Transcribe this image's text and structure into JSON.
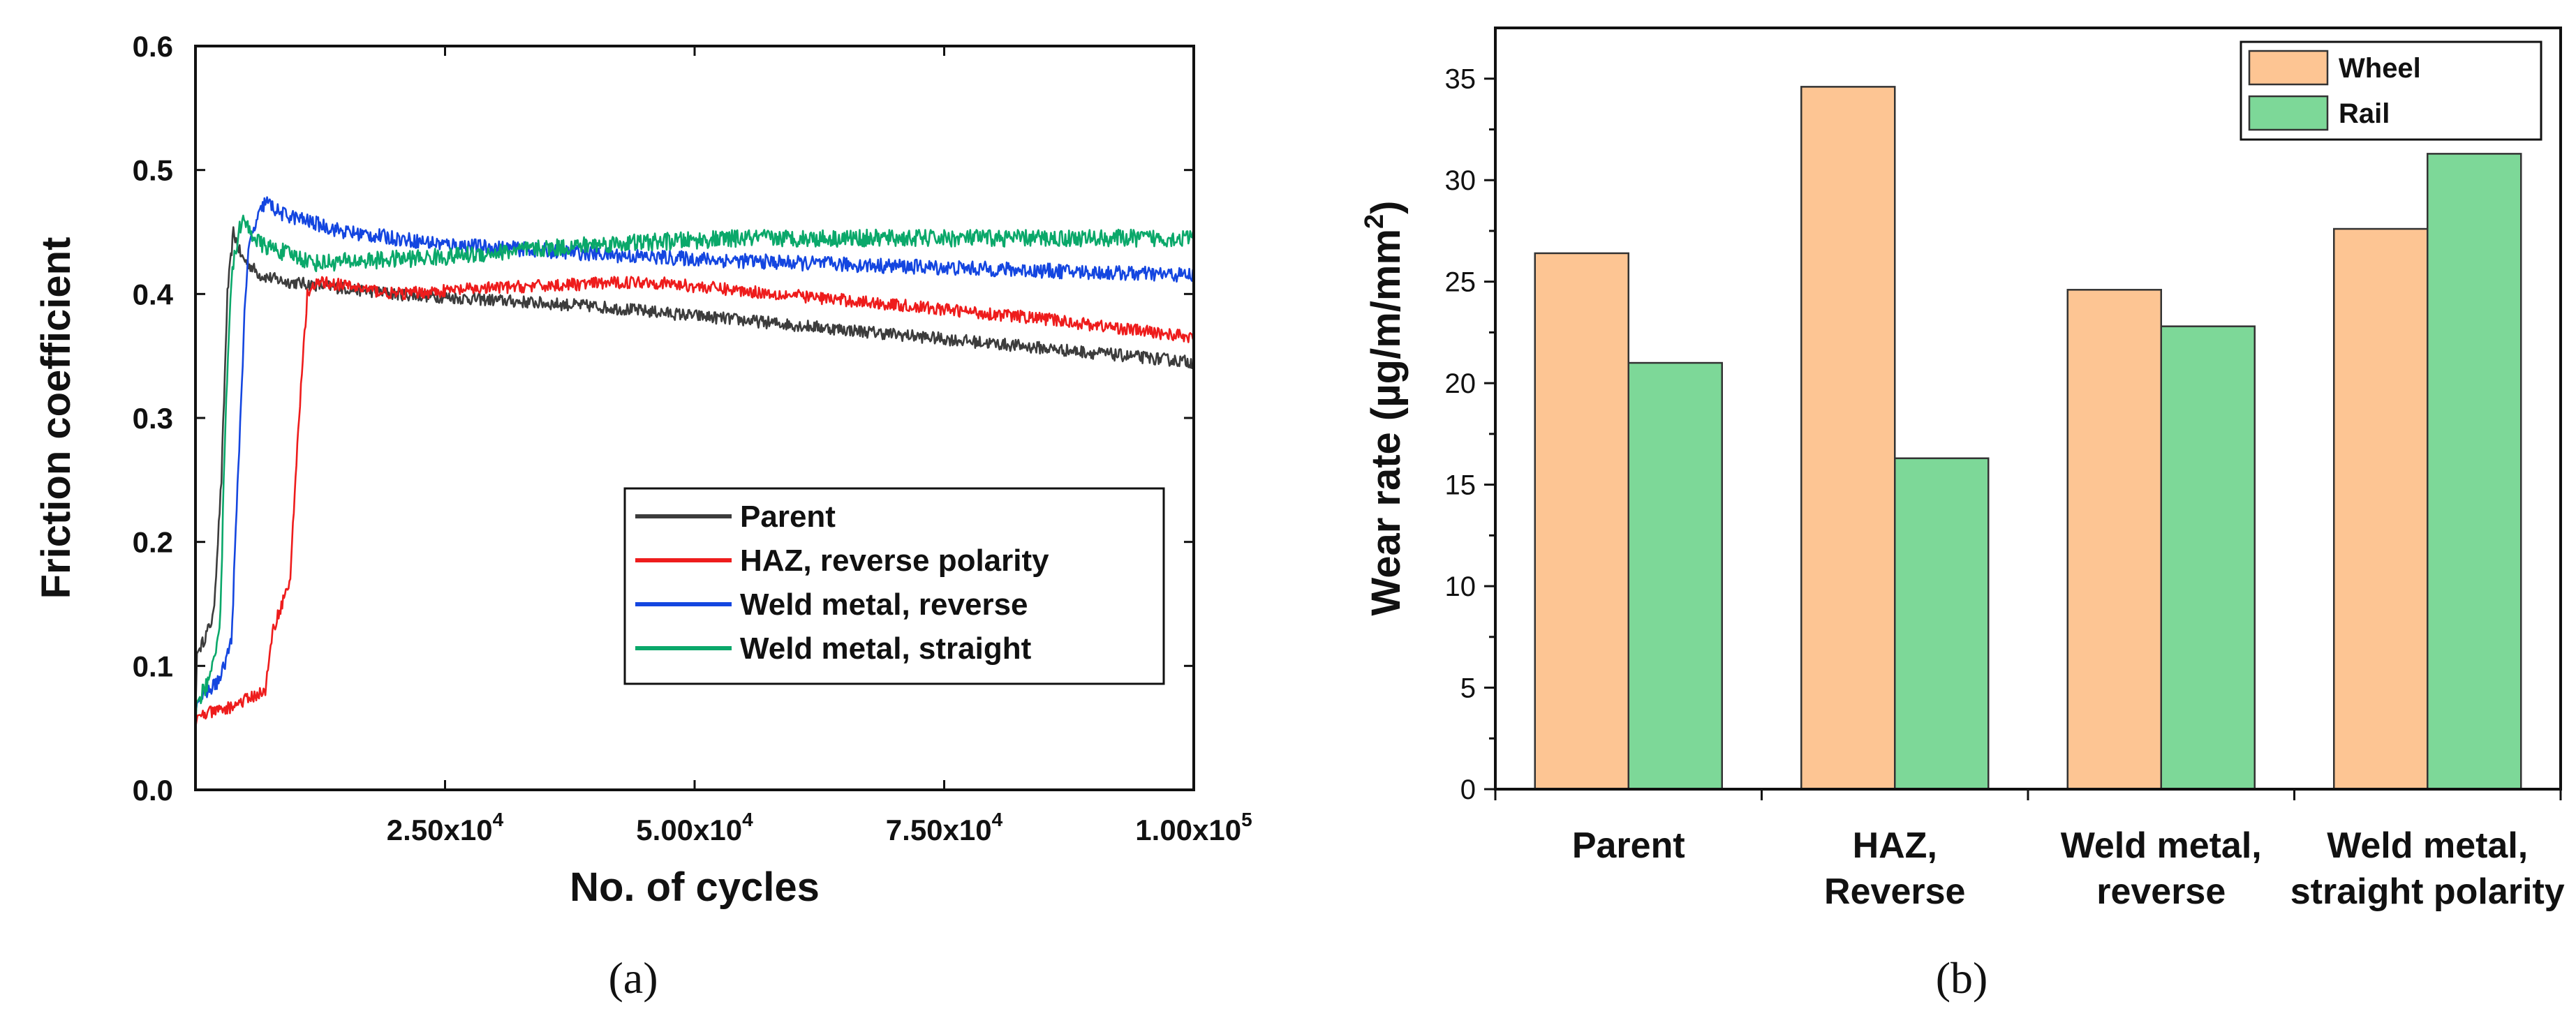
{
  "chart_data": [
    {
      "type": "line",
      "panel_label": "(a)",
      "xlabel": "No. of cycles",
      "ylabel": "Friction coefficient",
      "xlim": [
        0,
        100000
      ],
      "ylim": [
        0,
        0.6
      ],
      "x_ticks": [
        25000,
        50000,
        75000,
        100000
      ],
      "x_tick_labels": [
        {
          "mantissa": "2.50x10",
          "exp": "4"
        },
        {
          "mantissa": "5.00x10",
          "exp": "4"
        },
        {
          "mantissa": "7.50x10",
          "exp": "4"
        },
        {
          "mantissa": "1.00x10",
          "exp": "5"
        }
      ],
      "y_ticks": [
        0.0,
        0.1,
        0.2,
        0.3,
        0.4,
        0.5,
        0.6
      ],
      "y_tick_labels": [
        "0.0",
        "0.1",
        "0.2",
        "0.3",
        "0.4",
        "0.5",
        "0.6"
      ],
      "legend_position": "lower-right",
      "series": [
        {
          "name": "Parent",
          "color": "#3c3c3c",
          "noise": 0.005,
          "points": [
            [
              0,
              0.06
            ],
            [
              150,
              0.11
            ],
            [
              800,
              0.12
            ],
            [
              1800,
              0.14
            ],
            [
              2600,
              0.25
            ],
            [
              3200,
              0.4
            ],
            [
              3800,
              0.45
            ],
            [
              4600,
              0.43
            ],
            [
              6500,
              0.415
            ],
            [
              9000,
              0.41
            ],
            [
              20000,
              0.4
            ],
            [
              40000,
              0.39
            ],
            [
              60000,
              0.375
            ],
            [
              80000,
              0.36
            ],
            [
              100000,
              0.345
            ]
          ]
        },
        {
          "name": "Weld metal, reverse",
          "color": "#1446e0",
          "noise": 0.006,
          "points": [
            [
              0,
              0.06
            ],
            [
              150,
              0.07
            ],
            [
              2500,
              0.09
            ],
            [
              3600,
              0.12
            ],
            [
              4300,
              0.26
            ],
            [
              5000,
              0.4
            ],
            [
              5400,
              0.44
            ],
            [
              6200,
              0.46
            ],
            [
              7000,
              0.475
            ],
            [
              8500,
              0.465
            ],
            [
              15000,
              0.45
            ],
            [
              25000,
              0.44
            ],
            [
              45000,
              0.43
            ],
            [
              60000,
              0.425
            ],
            [
              80000,
              0.42
            ],
            [
              100000,
              0.415
            ]
          ]
        },
        {
          "name": "Weld metal, straight",
          "color": "#0aa86a",
          "noise": 0.007,
          "points": [
            [
              0,
              0.04
            ],
            [
              100,
              0.07
            ],
            [
              1500,
              0.09
            ],
            [
              2500,
              0.14
            ],
            [
              3000,
              0.3
            ],
            [
              3500,
              0.4
            ],
            [
              3900,
              0.43
            ],
            [
              4600,
              0.46
            ],
            [
              6500,
              0.44
            ],
            [
              12000,
              0.425
            ],
            [
              25000,
              0.43
            ],
            [
              40000,
              0.44
            ],
            [
              55000,
              0.445
            ],
            [
              75000,
              0.445
            ],
            [
              100000,
              0.445
            ]
          ]
        },
        {
          "name": "HAZ, reverse polarity",
          "color": "#ee1c1c",
          "noise": 0.005,
          "points": [
            [
              0,
              0.05
            ],
            [
              200,
              0.06
            ],
            [
              3000,
              0.065
            ],
            [
              7000,
              0.08
            ],
            [
              7800,
              0.13
            ],
            [
              9500,
              0.17
            ],
            [
              10200,
              0.28
            ],
            [
              11200,
              0.4
            ],
            [
              12500,
              0.41
            ],
            [
              20000,
              0.4
            ],
            [
              30000,
              0.405
            ],
            [
              45000,
              0.41
            ],
            [
              65000,
              0.395
            ],
            [
              85000,
              0.38
            ],
            [
              100000,
              0.365
            ]
          ]
        }
      ]
    },
    {
      "type": "bar",
      "panel_label": "(b)",
      "ylabel_main": "Wear rate (",
      "ylabel_unit": "µg/m/mm",
      "ylabel_exp": "2",
      "ylabel_close": ")",
      "ylim": [
        0,
        37.5
      ],
      "y_ticks": [
        0,
        5,
        10,
        15,
        20,
        25,
        30,
        35
      ],
      "y_tick_labels": [
        "0",
        "5",
        "10",
        "15",
        "20",
        "25",
        "30",
        "35"
      ],
      "categories": [
        [
          "Parent"
        ],
        [
          "HAZ,",
          "Reverse"
        ],
        [
          "Weld metal,",
          "reverse"
        ],
        [
          "Weld metal,",
          "straight polarity"
        ]
      ],
      "legend_position": "top-right",
      "series": [
        {
          "name": "Wheel",
          "color": "#fdc593",
          "values": [
            26.4,
            34.6,
            24.6,
            27.6
          ]
        },
        {
          "name": "Rail",
          "color": "#7dd898",
          "values": [
            21.0,
            16.3,
            22.8,
            31.3
          ]
        }
      ]
    }
  ]
}
